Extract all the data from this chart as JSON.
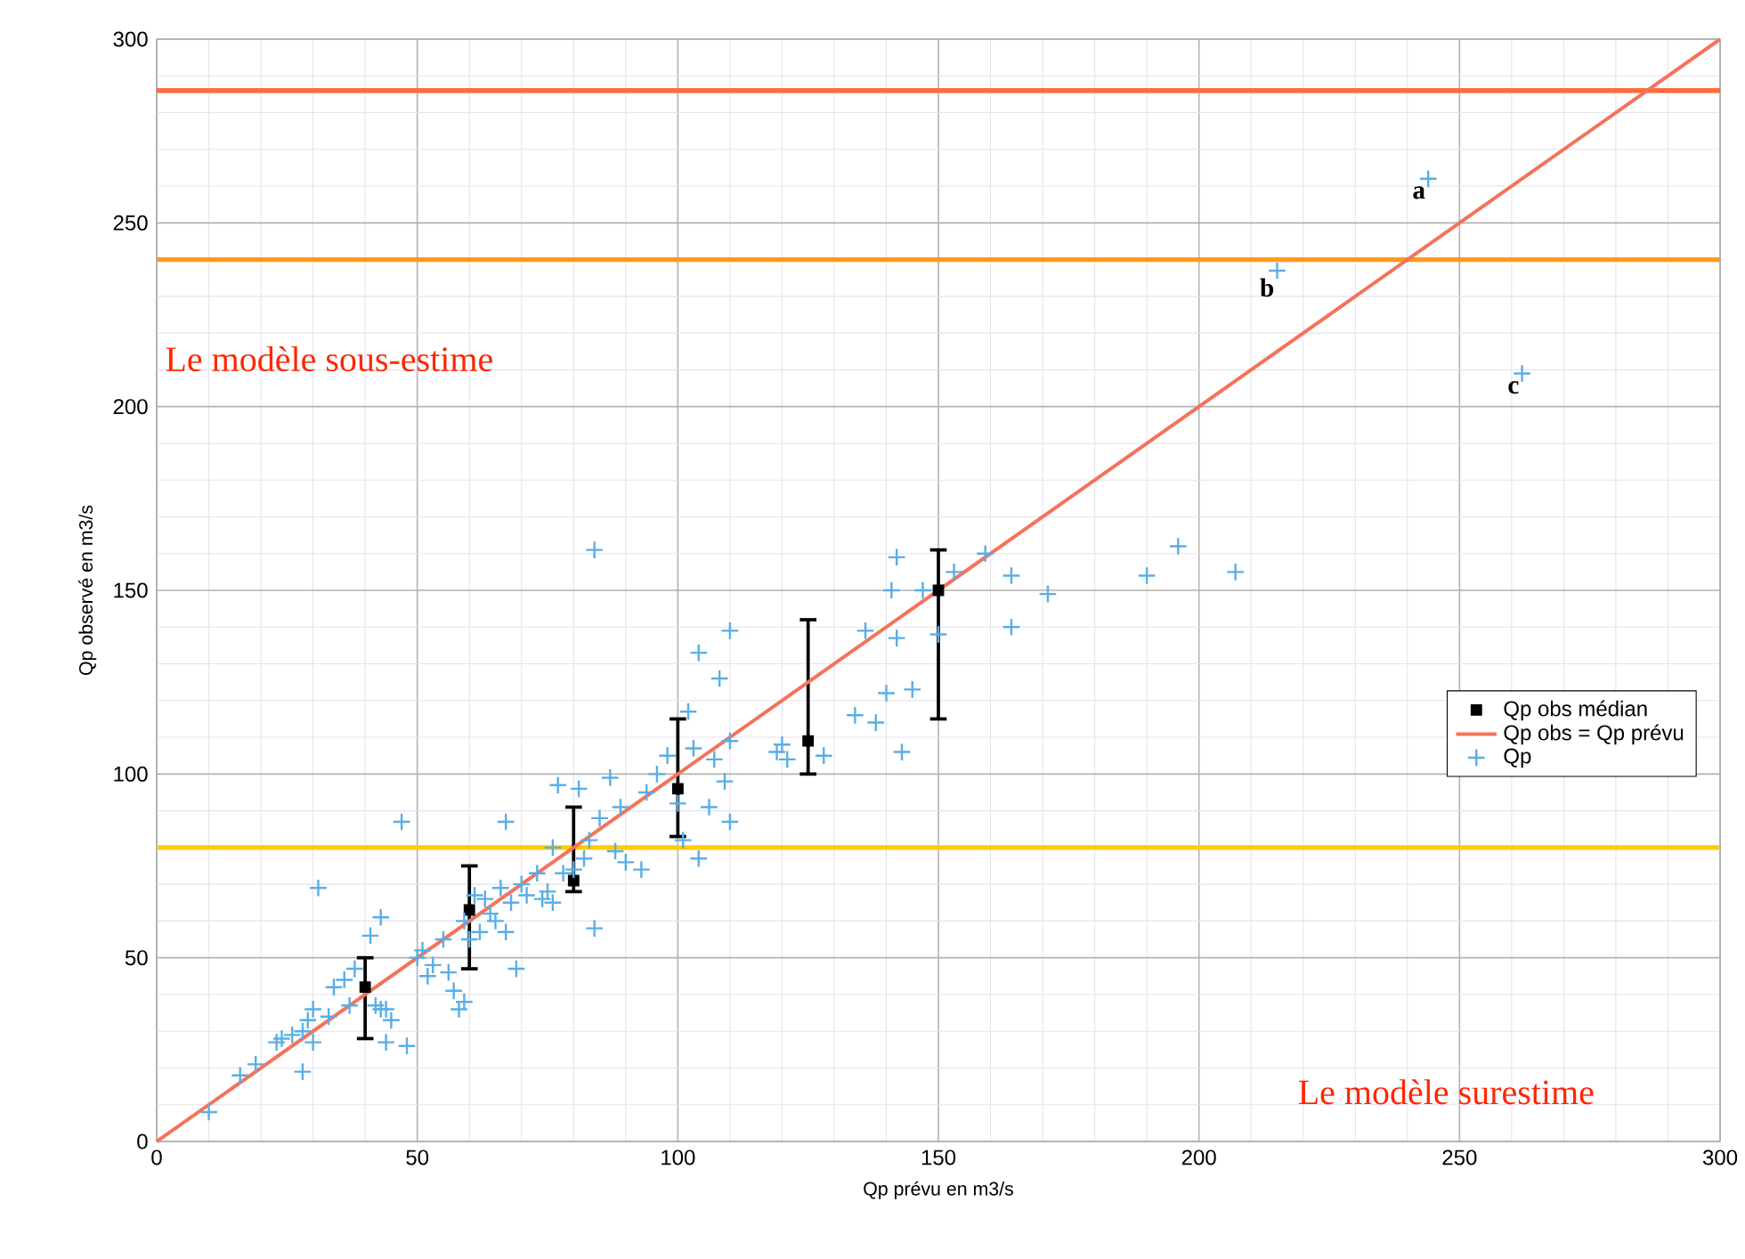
{
  "chart_data": {
    "type": "scatter",
    "xlabel": "Qp prévu en m3/s",
    "ylabel": "Qp observé en m3/s",
    "xlim": [
      0,
      300
    ],
    "ylim": [
      0,
      300
    ],
    "xticks": [
      0,
      50,
      100,
      150,
      200,
      250,
      300
    ],
    "yticks": [
      0,
      50,
      100,
      150,
      200,
      250,
      300
    ],
    "grid": true,
    "legend": "right",
    "series": [
      {
        "name": "Qp obs médian",
        "marker": "square",
        "color": "#000000",
        "x": [
          40,
          60,
          80,
          100,
          125,
          150
        ],
        "values": [
          42,
          63,
          71,
          96,
          109,
          150
        ],
        "errors": [
          [
            28,
            50
          ],
          [
            47,
            75
          ],
          [
            68,
            91
          ],
          [
            83,
            115
          ],
          [
            100,
            142
          ],
          [
            115,
            161
          ]
        ]
      },
      {
        "name": "Qp obs = Qp prévu",
        "type": "line",
        "marker": "none",
        "color": "#f4735a",
        "x": [
          0,
          300
        ],
        "values": [
          0,
          300
        ]
      },
      {
        "name": "Qp",
        "marker": "cross",
        "color": "#5aaee6",
        "x": [
          10,
          16,
          19,
          23,
          24,
          26,
          28,
          29,
          30,
          28,
          31,
          30,
          33,
          34,
          36,
          37,
          38,
          41,
          42,
          43,
          44,
          43,
          45,
          44,
          47,
          48,
          50,
          51,
          52,
          53,
          55,
          56,
          57,
          58,
          59,
          59,
          60,
          61,
          62,
          63,
          64,
          65,
          66,
          67,
          67,
          68,
          69,
          70,
          71,
          73,
          74,
          75,
          76,
          76,
          77,
          78,
          80,
          81,
          82,
          83,
          84,
          84,
          85,
          87,
          88,
          89,
          90,
          93,
          94,
          96,
          98,
          100,
          101,
          102,
          103,
          104,
          104,
          106,
          107,
          108,
          109,
          110,
          110,
          110,
          119,
          120,
          121,
          128,
          134,
          136,
          138,
          140,
          141,
          142,
          142,
          143,
          145,
          147,
          150,
          153,
          159,
          164,
          164,
          171,
          190,
          196,
          207,
          215,
          244,
          262
        ],
        "values": [
          8,
          18,
          21,
          27,
          28,
          29,
          30,
          33,
          36,
          19,
          69,
          27,
          34,
          42,
          44,
          37,
          47,
          56,
          37,
          36,
          36,
          61,
          33,
          27,
          87,
          26,
          50,
          52,
          45,
          48,
          55,
          46,
          41,
          36,
          38,
          60,
          55,
          67,
          57,
          66,
          62,
          60,
          69,
          57,
          87,
          65,
          47,
          70,
          67,
          73,
          66,
          68,
          65,
          80,
          97,
          73,
          74,
          96,
          77,
          82,
          58,
          161,
          88,
          99,
          79,
          91,
          76,
          74,
          95,
          100,
          105,
          92,
          82,
          117,
          107,
          133,
          77,
          91,
          104,
          126,
          98,
          87,
          109,
          139,
          106,
          108,
          104,
          105,
          116,
          139,
          114,
          122,
          150,
          137,
          159,
          106,
          123,
          150,
          138,
          155,
          160,
          154,
          140,
          149,
          154,
          162,
          155,
          237,
          262,
          209
        ]
      }
    ],
    "ref_lines": [
      {
        "axis": "y",
        "value": 80,
        "color": "#ffcc00"
      },
      {
        "axis": "y",
        "value": 240,
        "color": "#ff9a1a"
      },
      {
        "axis": "y",
        "value": 286,
        "color": "#ff6a3a"
      }
    ],
    "annotations": [
      "Le modèle sous-estime",
      "Le modèle surestime",
      {
        "text": "a",
        "x": 244,
        "y": 262
      },
      {
        "text": "b",
        "x": 215,
        "y": 237
      },
      {
        "text": "c",
        "x": 262,
        "y": 209
      }
    ]
  }
}
